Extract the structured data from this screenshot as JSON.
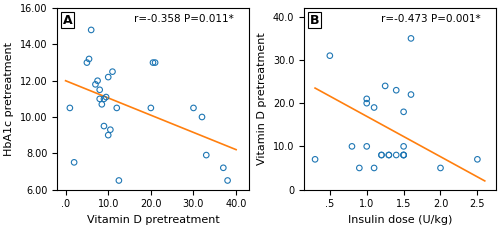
{
  "chart_data": [
    {
      "type": "scatter",
      "title": "A",
      "x_label": "Vitamin D pretreatment",
      "y_label": "HbA1c pretreatment",
      "series": [
        {
          "type": "scatter",
          "x": [
            1,
            2,
            5,
            5.5,
            6,
            7,
            7.5,
            8,
            8,
            8.5,
            9,
            9,
            9.5,
            10,
            10,
            10.5,
            11,
            12,
            12.5,
            20,
            20.5,
            21,
            30,
            32,
            33,
            37,
            38
          ],
          "values": [
            10.5,
            7.5,
            13,
            13.2,
            14.8,
            11.8,
            12,
            11.5,
            11,
            10.7,
            9.5,
            11,
            11.1,
            9,
            12.2,
            9.3,
            12.5,
            10.5,
            6.5,
            10.5,
            13,
            13,
            10.5,
            10,
            7.9,
            7.2,
            6.5
          ]
        },
        {
          "type": "line",
          "x": [
            0,
            40
          ],
          "values": [
            12.0,
            8.2
          ]
        }
      ],
      "xlim": [
        -2,
        43
      ],
      "ylim": [
        6.0,
        16.0
      ],
      "xticks": [
        {
          "value": 0,
          "label": ".0"
        },
        {
          "value": 10,
          "label": "10.0"
        },
        {
          "value": 20,
          "label": "20.0"
        },
        {
          "value": 30,
          "label": "30.0"
        },
        {
          "value": 40,
          "label": "40.0"
        }
      ],
      "yticks": [
        {
          "value": 6.0,
          "label": "6.00"
        },
        {
          "value": 8.0,
          "label": "8.00"
        },
        {
          "value": 10.0,
          "label": "10.00"
        },
        {
          "value": 12.0,
          "label": "12.00"
        },
        {
          "value": 14.0,
          "label": "14.00"
        },
        {
          "value": 16.0,
          "label": "16.00"
        }
      ],
      "annotations": [
        "r=-0.358",
        "P=0.011*"
      ]
    },
    {
      "type": "scatter",
      "title": "B",
      "x_label": "Insulin dose (U/kg)",
      "y_label": "Vitamin D pretreatment",
      "series": [
        {
          "type": "scatter",
          "x": [
            0.3,
            0.5,
            0.8,
            0.9,
            1.0,
            1.0,
            1.0,
            1.1,
            1.1,
            1.2,
            1.2,
            1.25,
            1.3,
            1.3,
            1.4,
            1.4,
            1.5,
            1.5,
            1.5,
            1.5,
            1.5,
            1.6,
            1.6,
            2.0,
            2.5
          ],
          "values": [
            7,
            31,
            10,
            5,
            20,
            21,
            10,
            19,
            5,
            8,
            8,
            24,
            8,
            8,
            8,
            23,
            8,
            8,
            8,
            18,
            10,
            35,
            22,
            5,
            7
          ]
        },
        {
          "type": "line",
          "x": [
            0.3,
            2.6
          ],
          "values": [
            23.5,
            2.0
          ]
        }
      ],
      "xlim": [
        0.15,
        2.75
      ],
      "ylim": [
        0,
        42
      ],
      "xticks": [
        {
          "value": 0.5,
          "label": ".5"
        },
        {
          "value": 1.0,
          "label": "1.0"
        },
        {
          "value": 1.5,
          "label": "1.5"
        },
        {
          "value": 2.0,
          "label": "2.0"
        },
        {
          "value": 2.5,
          "label": "2.5"
        }
      ],
      "yticks": [
        0,
        {
          "value": 10,
          "label": "10.0"
        },
        {
          "value": 20,
          "label": "20.0"
        },
        {
          "value": 30,
          "label": "30.0"
        },
        {
          "value": 40,
          "label": "40.0"
        }
      ],
      "annotations": [
        "r=-0.473",
        "P=0.001*"
      ]
    }
  ]
}
